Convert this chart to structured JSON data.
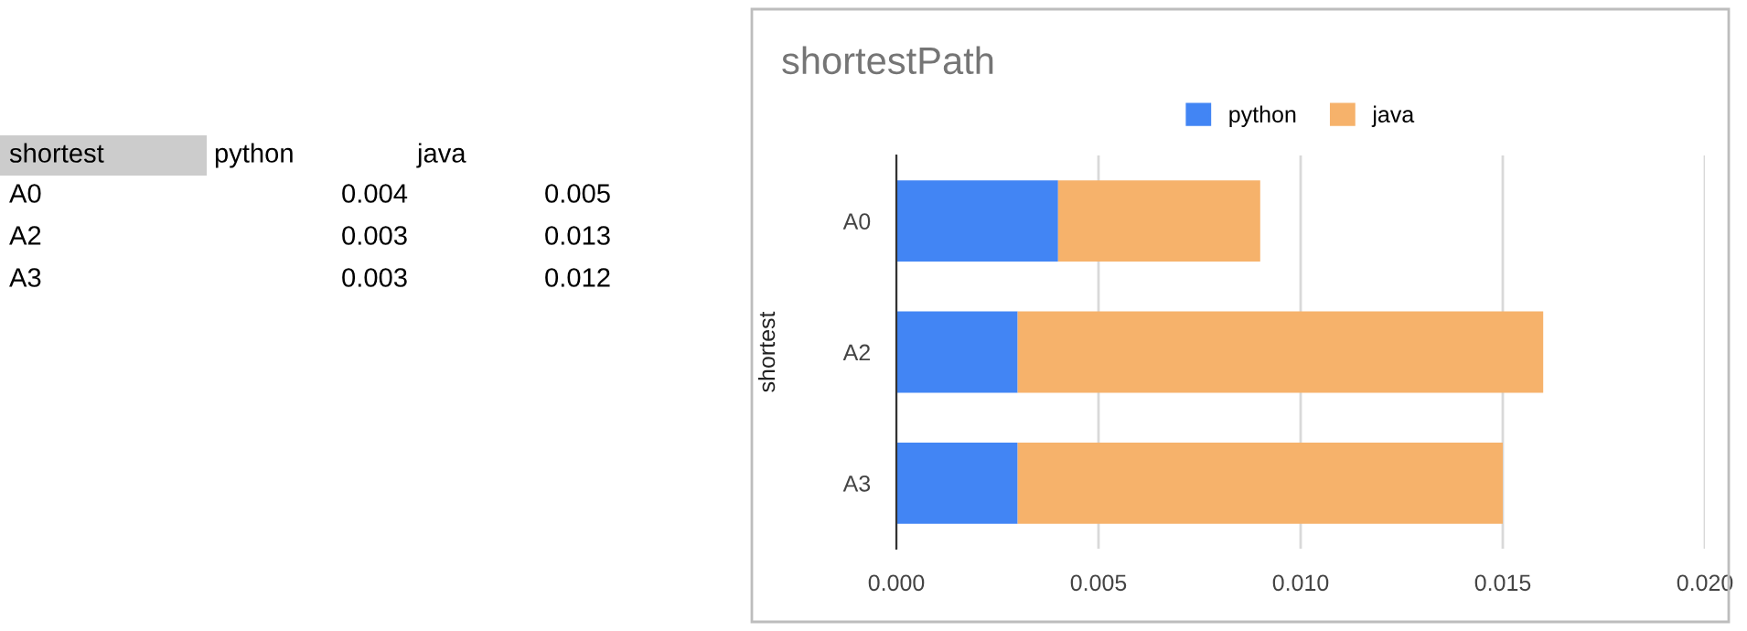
{
  "chart_data": [
    {
      "type": "other",
      "annotations": [
        "shortest",
        "python",
        "java",
        "A0",
        "0.004",
        "0.005",
        "A2",
        "0.003",
        "0.013",
        "A3",
        "0.003",
        "0.012"
      ]
    },
    {
      "type": "bar",
      "orientation": "horizontal",
      "stacked": true,
      "title": "shortestPath",
      "ylabel": "shortest",
      "categories": [
        "A0",
        "A2",
        "A3"
      ],
      "series": [
        {
          "name": "python",
          "color": "#4285f4",
          "values": [
            0.004,
            0.003,
            0.003
          ]
        },
        {
          "name": "java",
          "color": "#f6b26b",
          "values": [
            0.005,
            0.013,
            0.012
          ]
        }
      ],
      "xlim": [
        0,
        0.02
      ],
      "xticks": [
        {
          "value": 0,
          "label": "0.000"
        },
        {
          "value": 0.005,
          "label": "0.005"
        },
        {
          "value": 0.01,
          "label": "0.010"
        },
        {
          "value": 0.015,
          "label": "0.015"
        },
        {
          "value": 0.02,
          "label": "0.020"
        }
      ],
      "grid": "x",
      "legend": "top"
    }
  ]
}
